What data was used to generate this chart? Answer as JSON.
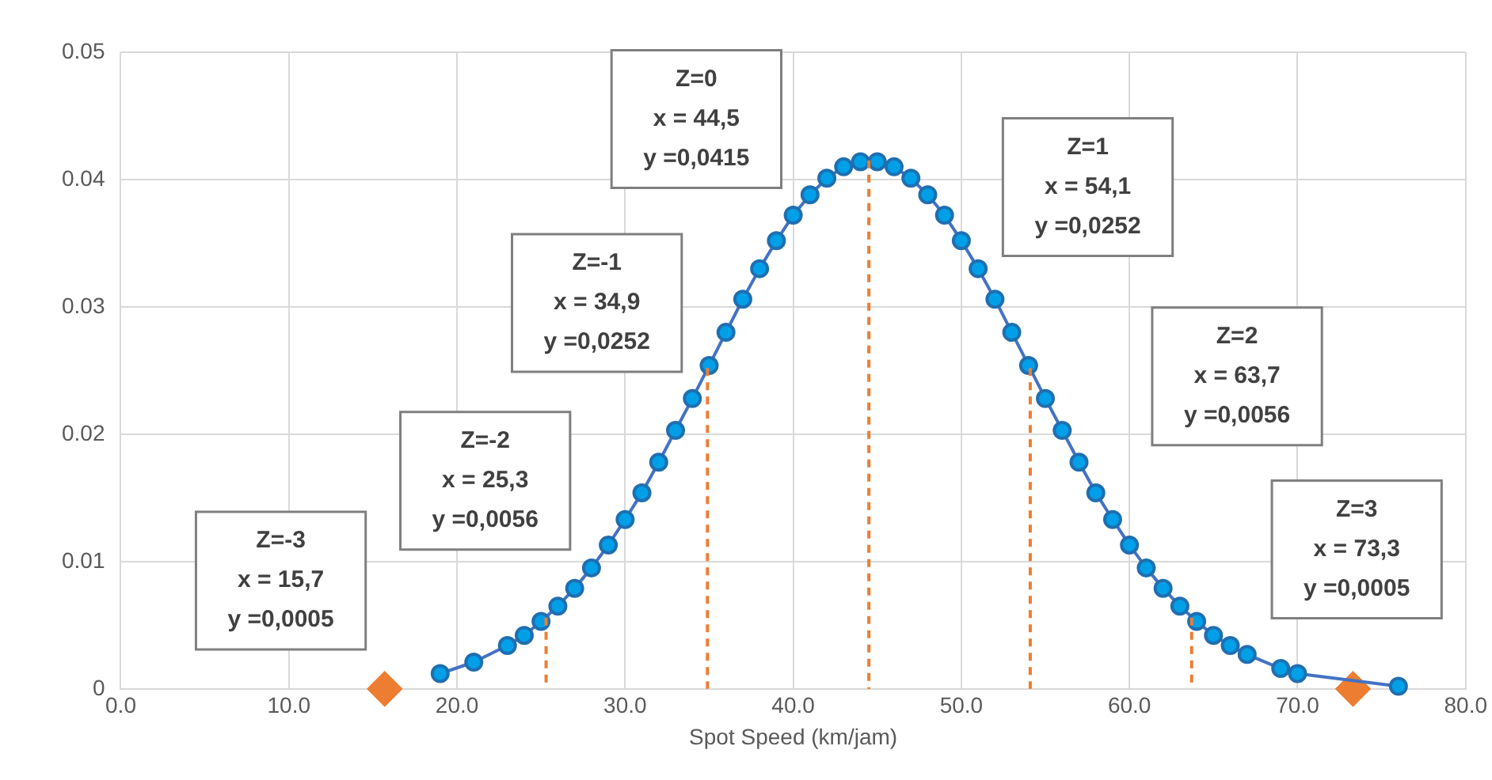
{
  "chart_data": {
    "type": "line",
    "xlabel": "Spot Speed (km/jam)",
    "xlim": [
      0,
      80
    ],
    "xticks": [
      {
        "value": 0,
        "label": "0.0"
      },
      {
        "value": 10,
        "label": "10.0"
      },
      {
        "value": 20,
        "label": "20.0"
      },
      {
        "value": 30,
        "label": "30.0"
      },
      {
        "value": 40,
        "label": "40.0"
      },
      {
        "value": 50,
        "label": "50.0"
      },
      {
        "value": 60,
        "label": "60.0"
      },
      {
        "value": 70,
        "label": "70.0"
      },
      {
        "value": 80,
        "label": "80.0"
      }
    ],
    "ylim": [
      0,
      0.05
    ],
    "yticks": [
      0,
      0.01,
      0.02,
      0.03,
      0.04,
      0.05
    ],
    "grid": true,
    "legend": false,
    "series": [
      {
        "color": "#4472c4",
        "marker": "circle",
        "x": [
          19,
          21,
          23,
          24,
          25,
          26,
          27,
          28,
          29,
          30,
          31,
          32,
          33,
          34,
          35,
          36,
          37,
          38,
          39,
          40,
          41,
          42,
          43,
          44,
          45,
          46,
          47,
          48,
          49,
          50,
          51,
          52,
          53,
          54,
          55,
          56,
          57,
          58,
          59,
          60,
          61,
          62,
          63,
          64,
          65,
          66,
          67,
          69,
          70,
          76
        ],
        "values": [
          0.0012,
          0.0021,
          0.0034,
          0.0042,
          0.0053,
          0.0065,
          0.0079,
          0.0095,
          0.0113,
          0.0133,
          0.0154,
          0.0178,
          0.0203,
          0.0228,
          0.0254,
          0.028,
          0.0306,
          0.033,
          0.0352,
          0.0372,
          0.0388,
          0.0401,
          0.041,
          0.0414,
          0.0414,
          0.041,
          0.0401,
          0.0388,
          0.0372,
          0.0352,
          0.033,
          0.0306,
          0.028,
          0.0254,
          0.0228,
          0.0203,
          0.0178,
          0.0154,
          0.0133,
          0.0113,
          0.0095,
          0.0079,
          0.0065,
          0.0053,
          0.0042,
          0.0034,
          0.0027,
          0.0016,
          0.0012,
          0.0002
        ]
      },
      {
        "type": "scatter",
        "color": "#ed7d31",
        "marker": "diamond",
        "x": [
          15.7,
          73.3
        ],
        "values": [
          0,
          0
        ]
      },
      {
        "color": "#ed7d31",
        "marker": "none",
        "line_style": "dashed",
        "x": [
          25.3,
          25.3
        ],
        "values": [
          0.0056,
          0
        ]
      },
      {
        "color": "#ed7d31",
        "marker": "none",
        "line_style": "dashed",
        "x": [
          34.9,
          34.9
        ],
        "values": [
          0.0252,
          0
        ]
      },
      {
        "color": "#ed7d31",
        "marker": "none",
        "line_style": "dashed",
        "x": [
          44.5,
          44.5
        ],
        "values": [
          0.0415,
          0
        ]
      },
      {
        "color": "#ed7d31",
        "marker": "none",
        "line_style": "dashed",
        "x": [
          54.1,
          54.1
        ],
        "values": [
          0.0252,
          0
        ]
      },
      {
        "color": "#ed7d31",
        "marker": "none",
        "line_style": "dashed",
        "x": [
          63.7,
          63.7
        ],
        "values": [
          0.0056,
          0
        ]
      }
    ],
    "annotations": [
      "Z=-3\nx = 15,7\ny =0,0005",
      "Z=-2\nx = 25,3\ny =0,0056",
      "Z=-1\nx = 34,9\ny =0,0252",
      "Z=0\nx = 44,5\ny =0,0415",
      "Z=1\nx = 54,1\ny =0,0252",
      "Z=2\nx = 63,7\ny =0,0056",
      "Z=3\nx = 73,3\ny =0,0005"
    ]
  }
}
